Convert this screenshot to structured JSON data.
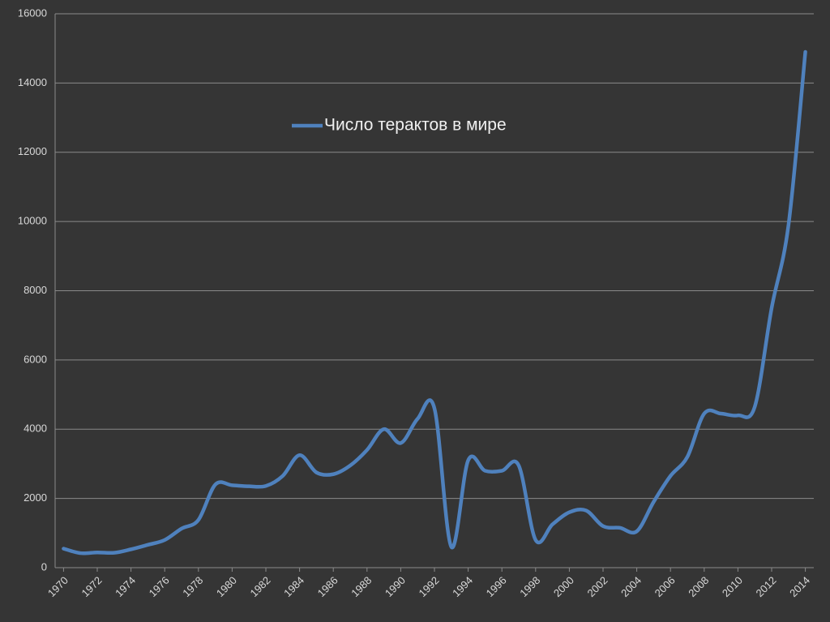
{
  "chart_data": {
    "type": "line",
    "x": [
      1970,
      1971,
      1972,
      1973,
      1974,
      1975,
      1976,
      1977,
      1978,
      1979,
      1980,
      1981,
      1982,
      1983,
      1984,
      1985,
      1986,
      1987,
      1988,
      1989,
      1990,
      1991,
      1992,
      1993,
      1994,
      1995,
      1996,
      1997,
      1998,
      1999,
      2000,
      2001,
      2002,
      2003,
      2004,
      2005,
      2006,
      2007,
      2008,
      2009,
      2010,
      2011,
      2012,
      2013,
      2014
    ],
    "series": [
      {
        "name": "Число терактов в мире",
        "color": "#4f81bd",
        "values": [
          550,
          420,
          440,
          430,
          530,
          660,
          800,
          1130,
          1380,
          2400,
          2380,
          2350,
          2360,
          2650,
          3250,
          2750,
          2700,
          2950,
          3400,
          4000,
          3600,
          4300,
          4600,
          600,
          3100,
          2800,
          2800,
          2950,
          800,
          1250,
          1600,
          1650,
          1200,
          1150,
          1050,
          1900,
          2650,
          3200,
          4450,
          4450,
          4400,
          4650,
          7500,
          9900,
          14900
        ]
      }
    ],
    "xlim": [
      1969.5,
      2014.5
    ],
    "xticks": [
      1970,
      1972,
      1974,
      1976,
      1978,
      1980,
      1982,
      1984,
      1986,
      1988,
      1990,
      1992,
      1994,
      1996,
      1998,
      2000,
      2002,
      2004,
      2006,
      2008,
      2010,
      2012,
      2014
    ],
    "ylim": [
      0,
      16000
    ],
    "yticks": [
      0,
      2000,
      4000,
      6000,
      8000,
      10000,
      12000,
      14000,
      16000
    ],
    "grid": true,
    "legend": "upper-center",
    "smooth": true
  }
}
